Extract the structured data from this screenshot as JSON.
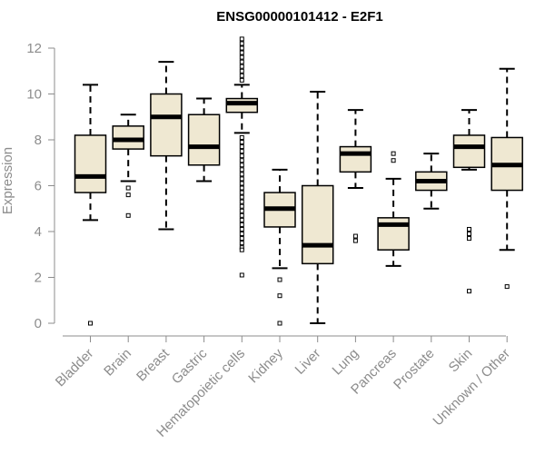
{
  "chart_data": {
    "type": "boxplot",
    "title": "ENSG00000101412 - E2F1",
    "xlabel": "",
    "ylabel": "Expression",
    "ylim": [
      0,
      12.4
    ],
    "yticks": [
      0,
      2,
      4,
      6,
      8,
      10,
      12
    ],
    "grid": false,
    "box_fill": "#efe8d2",
    "outline_color": "#000000",
    "categories": [
      "Bladder",
      "Brain",
      "Breast",
      "Gastric",
      "Hematopoietic cells",
      "Kidney",
      "Liver",
      "Lung",
      "Pancreas",
      "Prostate",
      "Skin",
      "Unknown / Other"
    ],
    "boxes": [
      {
        "category": "Bladder",
        "whisker_low": 4.5,
        "q1": 5.7,
        "median": 6.4,
        "q3": 8.2,
        "whisker_high": 10.4,
        "outliers": [
          0.0
        ]
      },
      {
        "category": "Brain",
        "whisker_low": 6.2,
        "q1": 7.6,
        "median": 8.0,
        "q3": 8.6,
        "whisker_high": 9.1,
        "outliers": [
          5.9,
          5.6,
          4.7
        ]
      },
      {
        "category": "Breast",
        "whisker_low": 4.1,
        "q1": 7.3,
        "median": 9.0,
        "q3": 10.0,
        "whisker_high": 11.4,
        "outliers": []
      },
      {
        "category": "Gastric",
        "whisker_low": 6.2,
        "q1": 6.9,
        "median": 7.7,
        "q3": 9.1,
        "whisker_high": 9.8,
        "outliers": []
      },
      {
        "category": "Hematopoietic cells",
        "whisker_low": 8.3,
        "q1": 9.2,
        "median": 9.6,
        "q3": 9.8,
        "whisker_high": 10.4,
        "outliers": [
          12.4,
          12.2,
          12.0,
          11.8,
          11.6,
          11.4,
          11.2,
          11.0,
          10.8,
          10.6,
          8.1,
          7.9,
          7.7,
          7.5,
          7.3,
          7.1,
          6.9,
          6.7,
          6.5,
          6.3,
          6.1,
          5.9,
          5.7,
          5.5,
          5.3,
          5.1,
          4.9,
          4.7,
          4.5,
          4.3,
          4.1,
          3.9,
          3.7,
          3.5,
          3.3,
          3.2,
          2.1
        ]
      },
      {
        "category": "Kidney",
        "whisker_low": 2.4,
        "q1": 4.2,
        "median": 5.0,
        "q3": 5.7,
        "whisker_high": 6.7,
        "outliers": [
          1.9,
          1.2,
          0.0
        ]
      },
      {
        "category": "Liver",
        "whisker_low": 0.0,
        "q1": 2.6,
        "median": 3.4,
        "q3": 6.0,
        "whisker_high": 10.1,
        "outliers": []
      },
      {
        "category": "Lung",
        "whisker_low": 5.9,
        "q1": 6.6,
        "median": 7.4,
        "q3": 7.7,
        "whisker_high": 9.3,
        "outliers": [
          3.8,
          3.6
        ]
      },
      {
        "category": "Pancreas",
        "whisker_low": 2.5,
        "q1": 3.2,
        "median": 4.3,
        "q3": 4.6,
        "whisker_high": 6.3,
        "outliers": [
          7.4,
          7.1
        ]
      },
      {
        "category": "Prostate",
        "whisker_low": 5.0,
        "q1": 5.8,
        "median": 6.2,
        "q3": 6.6,
        "whisker_high": 7.4,
        "outliers": []
      },
      {
        "category": "Skin",
        "whisker_low": 6.7,
        "q1": 6.8,
        "median": 7.7,
        "q3": 8.2,
        "whisker_high": 9.3,
        "outliers": [
          4.1,
          3.9,
          3.7,
          1.4
        ]
      },
      {
        "category": "Unknown / Other",
        "whisker_low": 3.2,
        "q1": 5.8,
        "median": 6.9,
        "q3": 8.1,
        "whisker_high": 11.1,
        "outliers": [
          1.6
        ]
      }
    ]
  }
}
